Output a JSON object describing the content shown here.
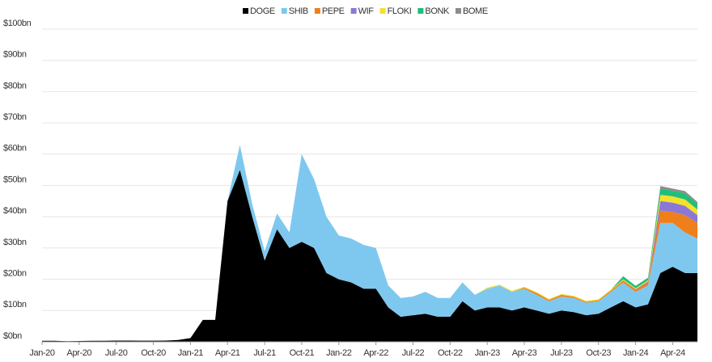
{
  "chart_data": {
    "type": "stacked_area",
    "categories": [
      "Jan-20",
      null,
      null,
      "Apr-20",
      null,
      null,
      "Jul-20",
      null,
      null,
      "Oct-20",
      null,
      null,
      "Jan-21",
      null,
      null,
      "Apr-21",
      null,
      null,
      "Jul-21",
      null,
      null,
      "Oct-21",
      null,
      null,
      "Jan-22",
      null,
      null,
      "Apr-22",
      null,
      null,
      "Jul-22",
      null,
      null,
      "Oct-22",
      null,
      null,
      "Jan-23",
      null,
      null,
      "Apr-23",
      null,
      null,
      "Jul-23",
      null,
      null,
      "Oct-23",
      null,
      null,
      "Jan-24",
      null,
      null,
      "Apr-24",
      null,
      null
    ],
    "series": [
      {
        "name": "DOGE",
        "color": "#000000",
        "values": [
          0.3,
          0.3,
          0.2,
          0.25,
          0.3,
          0.3,
          0.4,
          0.4,
          0.35,
          0.35,
          0.4,
          0.6,
          1.2,
          7,
          7,
          45,
          55,
          40,
          26,
          36,
          30,
          32,
          30,
          22,
          20,
          19,
          17,
          17,
          11,
          8,
          8.5,
          9,
          8,
          8,
          13,
          10,
          11,
          11,
          10,
          11,
          10,
          9,
          10,
          9.5,
          8.5,
          9,
          11,
          13,
          11,
          12,
          22,
          24,
          22,
          22
        ]
      },
      {
        "name": "SHIB",
        "color": "#7ec8ef",
        "values": [
          0,
          0,
          0,
          0,
          0,
          0,
          0,
          0,
          0,
          0,
          0,
          0,
          0,
          0,
          0,
          0,
          8,
          4,
          3,
          5,
          5,
          28,
          22,
          18,
          14,
          14,
          14,
          13,
          7,
          6,
          6,
          7,
          6,
          6,
          6,
          5,
          6,
          7,
          6,
          6,
          5,
          4,
          4.5,
          4.5,
          4,
          4,
          5,
          6,
          5,
          6,
          16,
          14,
          13,
          11
        ]
      },
      {
        "name": "PEPE",
        "color": "#ef7f1a",
        "values": [
          0,
          0,
          0,
          0,
          0,
          0,
          0,
          0,
          0,
          0,
          0,
          0,
          0,
          0,
          0,
          0,
          0,
          0,
          0,
          0,
          0,
          0,
          0,
          0,
          0,
          0,
          0,
          0,
          0,
          0,
          0,
          0,
          0,
          0,
          0,
          0,
          0,
          0,
          0,
          0.3,
          0.6,
          0.4,
          0.5,
          0.4,
          0.3,
          0.3,
          0.4,
          0.6,
          0.6,
          1,
          4,
          3.5,
          5.5,
          5
        ]
      },
      {
        "name": "WIF",
        "color": "#8b78d6",
        "values": [
          0,
          0,
          0,
          0,
          0,
          0,
          0,
          0,
          0,
          0,
          0,
          0,
          0,
          0,
          0,
          0,
          0,
          0,
          0,
          0,
          0,
          0,
          0,
          0,
          0,
          0,
          0,
          0,
          0,
          0,
          0,
          0,
          0,
          0,
          0,
          0,
          0,
          0,
          0,
          0,
          0,
          0,
          0,
          0,
          0,
          0,
          0,
          0.05,
          0.2,
          0.3,
          3,
          3,
          3,
          2.5
        ]
      },
      {
        "name": "FLOKI",
        "color": "#f4e12c",
        "values": [
          0,
          0,
          0,
          0,
          0,
          0,
          0,
          0,
          0,
          0,
          0,
          0,
          0,
          0,
          0,
          0,
          0,
          0,
          0,
          0,
          0,
          0,
          0,
          0,
          0,
          0,
          0,
          0,
          0,
          0,
          0,
          0,
          0,
          0,
          0,
          0,
          0.3,
          0.3,
          0.3,
          0.3,
          0.3,
          0.3,
          0.3,
          0.3,
          0.3,
          0.3,
          0.3,
          0.3,
          0.3,
          0.4,
          2,
          2,
          2,
          1.8
        ]
      },
      {
        "name": "BONK",
        "color": "#1fbf7a",
        "values": [
          0,
          0,
          0,
          0,
          0,
          0,
          0,
          0,
          0,
          0,
          0,
          0,
          0,
          0,
          0,
          0,
          0,
          0,
          0,
          0,
          0,
          0,
          0,
          0,
          0,
          0,
          0,
          0,
          0,
          0,
          0,
          0,
          0,
          0,
          0,
          0,
          0,
          0,
          0,
          0,
          0,
          0,
          0,
          0,
          0,
          0,
          0,
          1,
          0.8,
          0.8,
          2,
          1.8,
          2,
          1.8
        ]
      },
      {
        "name": "BOME",
        "color": "#8c8c8c",
        "values": [
          0,
          0,
          0,
          0,
          0,
          0,
          0,
          0,
          0,
          0,
          0,
          0,
          0,
          0,
          0,
          0,
          0,
          0,
          0,
          0,
          0,
          0,
          0,
          0,
          0,
          0,
          0,
          0,
          0,
          0,
          0,
          0,
          0,
          0,
          0,
          0,
          0,
          0,
          0,
          0,
          0,
          0,
          0,
          0,
          0,
          0,
          0,
          0,
          0,
          0,
          0.8,
          0.7,
          0.7,
          0.6
        ]
      }
    ],
    "ylim": [
      0,
      100
    ],
    "yticks": [
      {
        "value": 0,
        "label": "$0bn"
      },
      {
        "value": 10,
        "label": "$10bn"
      },
      {
        "value": 20,
        "label": "$20bn"
      },
      {
        "value": 30,
        "label": "$30bn"
      },
      {
        "value": 40,
        "label": "$40bn"
      },
      {
        "value": 50,
        "label": "$50bn"
      },
      {
        "value": 60,
        "label": "$60bn"
      },
      {
        "value": 70,
        "label": "$70bn"
      },
      {
        "value": 80,
        "label": "$80bn"
      },
      {
        "value": 90,
        "label": "$90bn"
      },
      {
        "value": 100,
        "label": "$100bn"
      }
    ],
    "grid": true,
    "legend": "top"
  }
}
